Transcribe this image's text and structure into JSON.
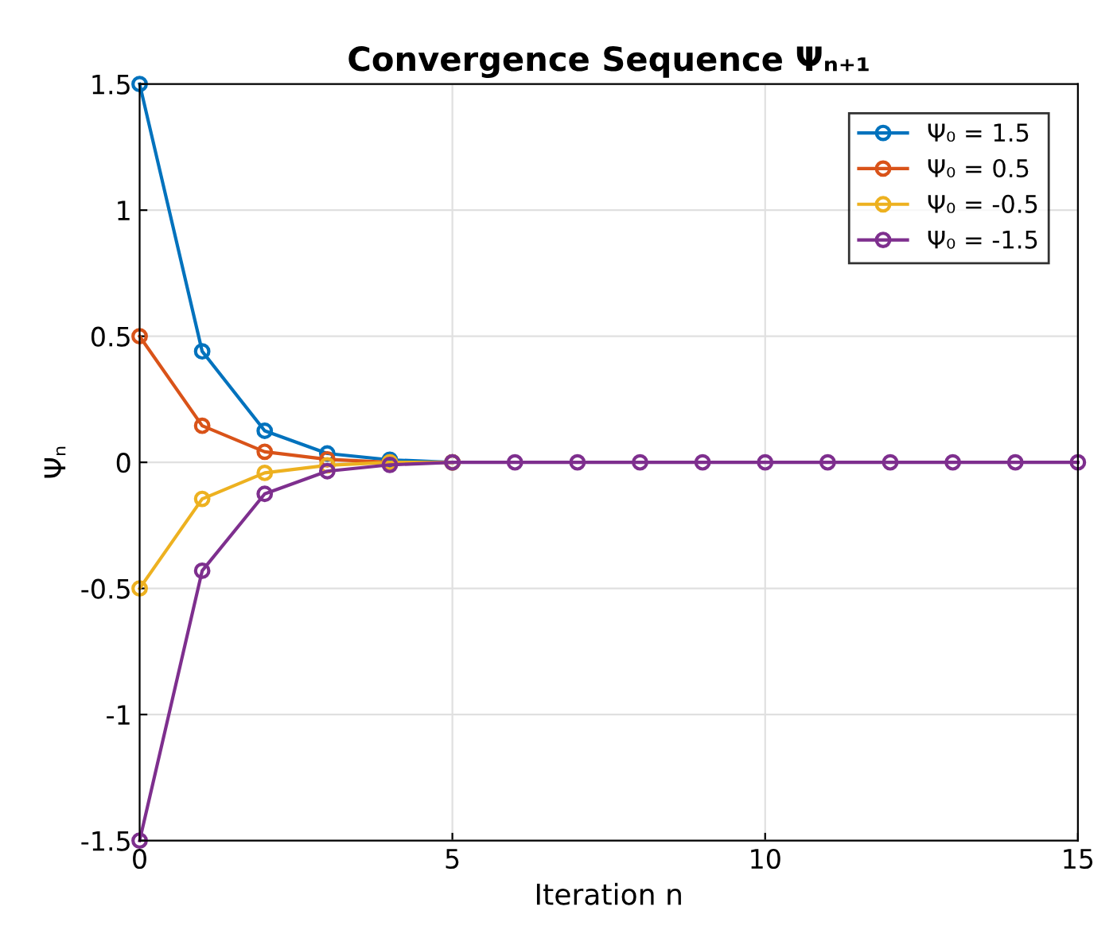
{
  "chart_data": {
    "type": "line",
    "title": "Convergence Sequence Ψₙ₊₁",
    "xlabel": "Iteration n",
    "ylabel": "Ψₙ",
    "x": [
      0,
      1,
      2,
      3,
      4,
      5,
      6,
      7,
      8,
      9,
      10,
      11,
      12,
      13,
      14,
      15
    ],
    "series": [
      {
        "name": "Ψ₀ = 1.5",
        "color": "#0072bd",
        "values": [
          1.5,
          0.44,
          0.125,
          0.035,
          0.01,
          0,
          null,
          null,
          null,
          null,
          null,
          null,
          null,
          null,
          null,
          null
        ]
      },
      {
        "name": "Ψ₀ = 0.5",
        "color": "#d95319",
        "values": [
          0.5,
          0.145,
          0.042,
          0.012,
          0,
          0,
          null,
          null,
          null,
          null,
          null,
          null,
          null,
          null,
          null,
          null
        ]
      },
      {
        "name": "Ψ₀ = -0.5",
        "color": "#edb120",
        "values": [
          -0.5,
          -0.145,
          -0.042,
          -0.012,
          0,
          0,
          null,
          null,
          null,
          null,
          null,
          null,
          null,
          null,
          null,
          null
        ]
      },
      {
        "name": "Ψ₀ = -1.5",
        "color": "#7e2f8e",
        "values": [
          -1.5,
          -0.43,
          -0.125,
          -0.035,
          -0.01,
          0,
          0,
          0,
          0,
          0,
          0,
          0,
          0,
          0,
          0,
          0
        ]
      }
    ],
    "xlim": [
      0,
      15
    ],
    "xticks": [
      0,
      5,
      10,
      15
    ],
    "ylim": [
      -1.5,
      1.5
    ],
    "yticks": [
      -1.5,
      -1,
      -0.5,
      0,
      0.5,
      1,
      1.5
    ],
    "grid": true,
    "legend": "top right",
    "marker": "circle",
    "line_style": "solid"
  }
}
